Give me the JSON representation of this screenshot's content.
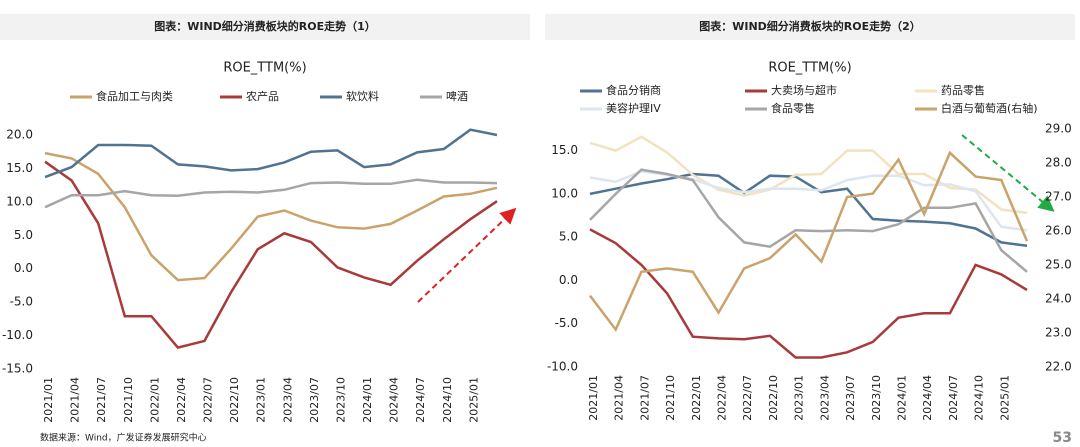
{
  "chart_data": [
    {
      "type": "line",
      "title": "图表：WIND细分消费板块的ROE走势（1）",
      "subtitle": "ROE_TTM(%)",
      "categories": [
        "2021/01",
        "2021/04",
        "2021/07",
        "2021/10",
        "2022/01",
        "2022/04",
        "2022/07",
        "2022/10",
        "2023/01",
        "2023/04",
        "2023/07",
        "2023/10",
        "2024/01",
        "2024/04",
        "2024/07",
        "2024/10",
        "2025/01",
        null
      ],
      "series": [
        {
          "name": "食品加工与肉类",
          "color": "#c9a36a",
          "values": [
            17.3,
            16.5,
            14.2,
            9.2,
            2.0,
            -1.7,
            -1.4,
            3.0,
            7.8,
            8.7,
            7.2,
            6.2,
            6.0,
            6.7,
            8.7,
            10.8,
            11.2,
            12.1
          ]
        },
        {
          "name": "农产品",
          "color": "#a83a3a",
          "values": [
            16.0,
            13.2,
            6.8,
            -7.1,
            -7.1,
            -11.8,
            -10.8,
            -3.5,
            2.9,
            5.3,
            4.0,
            0.2,
            -1.3,
            -2.4,
            1.2,
            4.4,
            7.4,
            10.1
          ]
        },
        {
          "name": "软饮料",
          "color": "#4f7391",
          "values": [
            13.7,
            15.2,
            18.5,
            18.5,
            18.4,
            15.6,
            15.3,
            14.7,
            14.9,
            15.9,
            17.5,
            17.7,
            15.2,
            15.6,
            17.4,
            17.9,
            20.8,
            20.0
          ]
        },
        {
          "name": "啤酒",
          "color": "#a6a6a6",
          "values": [
            9.2,
            11.0,
            11.0,
            11.6,
            11.0,
            10.9,
            11.4,
            11.5,
            11.4,
            11.8,
            12.8,
            12.9,
            12.7,
            12.7,
            13.3,
            12.9,
            12.9,
            12.8
          ]
        }
      ],
      "ylim": [
        -15,
        20
      ],
      "yticks": [
        {
          "value": -15,
          "label": "-15.0"
        },
        {
          "value": -10,
          "label": "-10.0"
        },
        {
          "value": -5,
          "label": "-5.0"
        },
        {
          "value": 0,
          "label": "0.0"
        },
        {
          "value": 5,
          "label": "5.0"
        },
        {
          "value": 10,
          "label": "10.0"
        },
        {
          "value": 15,
          "label": "15.0"
        },
        {
          "value": 20,
          "label": "20.0"
        }
      ],
      "grid": false
    },
    {
      "type": "line",
      "title": "图表：WIND细分消费板块的ROE走势（2）",
      "subtitle": "ROE_TTM(%)",
      "categories": [
        "2021/01",
        "2021/04",
        "2021/07",
        "2021/10",
        "2022/01",
        "2022/04",
        "2022/07",
        "2022/10",
        "2023/01",
        "2023/04",
        "2023/07",
        "2023/10",
        "2024/01",
        "2024/04",
        "2024/07",
        "2024/10",
        "2025/01",
        null
      ],
      "series": [
        {
          "name": "食品分销商",
          "color": "#4f7391",
          "values": [
            10.0,
            10.6,
            11.2,
            11.7,
            12.3,
            12.1,
            10.1,
            12.1,
            12.0,
            10.2,
            10.6,
            7.1,
            6.9,
            6.8,
            6.6,
            6.0,
            4.4,
            4.0
          ]
        },
        {
          "name": "大卖场与超市",
          "color": "#a83a3a",
          "values": [
            5.9,
            4.3,
            1.8,
            -1.5,
            -6.5,
            -6.7,
            -6.8,
            -6.4,
            -8.9,
            -8.9,
            -8.3,
            -7.1,
            -4.3,
            -3.8,
            -3.8,
            1.8,
            0.7,
            -1.1
          ]
        },
        {
          "name": "药品零售",
          "color": "#f2e2c0",
          "values": [
            15.9,
            15.0,
            16.6,
            14.8,
            12.2,
            10.5,
            9.8,
            10.5,
            12.2,
            12.3,
            15.0,
            15.0,
            12.3,
            12.3,
            10.7,
            10.5,
            8.2,
            7.8
          ]
        },
        {
          "name": "美容护理IV",
          "color": "#dce6f2",
          "values": [
            11.9,
            11.4,
            12.6,
            12.2,
            11.7,
            10.7,
            10.2,
            10.6,
            10.6,
            10.4,
            11.6,
            12.1,
            12.1,
            11.0,
            11.1,
            10.3,
            6.2,
            5.8
          ]
        },
        {
          "name": "食品零售",
          "color": "#a6a6a6",
          "values": [
            7.0,
            10.0,
            12.8,
            12.3,
            11.6,
            7.3,
            4.4,
            3.9,
            5.8,
            5.7,
            5.8,
            5.7,
            6.5,
            8.4,
            8.4,
            8.9,
            3.5,
            1.0
          ]
        },
        {
          "name": "白酒与葡萄酒(右轴)",
          "color": "#c9a36a",
          "axis": "y2",
          "values": [
            24.1,
            23.1,
            24.8,
            24.9,
            24.8,
            23.6,
            24.9,
            25.2,
            25.9,
            25.1,
            27.0,
            27.1,
            28.1,
            26.5,
            28.3,
            27.6,
            27.5,
            25.7
          ]
        }
      ],
      "ylim": [
        -10,
        17.5
      ],
      "yticks": [
        {
          "value": -10,
          "label": "-10.0"
        },
        {
          "value": -5,
          "label": "-5.0"
        },
        {
          "value": 0,
          "label": "0.0"
        },
        {
          "value": 5,
          "label": "5.0"
        },
        {
          "value": 10,
          "label": "10.0"
        },
        {
          "value": 15,
          "label": "15.0"
        }
      ],
      "y2lim": [
        22,
        29
      ],
      "y2ticks": [
        {
          "value": 22,
          "label": "22.0"
        },
        {
          "value": 23,
          "label": "23.0"
        },
        {
          "value": 24,
          "label": "24.0"
        },
        {
          "value": 25,
          "label": "25.0"
        },
        {
          "value": 26,
          "label": "26.0"
        },
        {
          "value": 27,
          "label": "27.0"
        },
        {
          "value": 28,
          "label": "28.0"
        },
        {
          "value": 29,
          "label": "29.0"
        }
      ],
      "grid": false
    }
  ],
  "source": "数据来源：Wind，广发证券发展研究中心",
  "page_number": "53"
}
